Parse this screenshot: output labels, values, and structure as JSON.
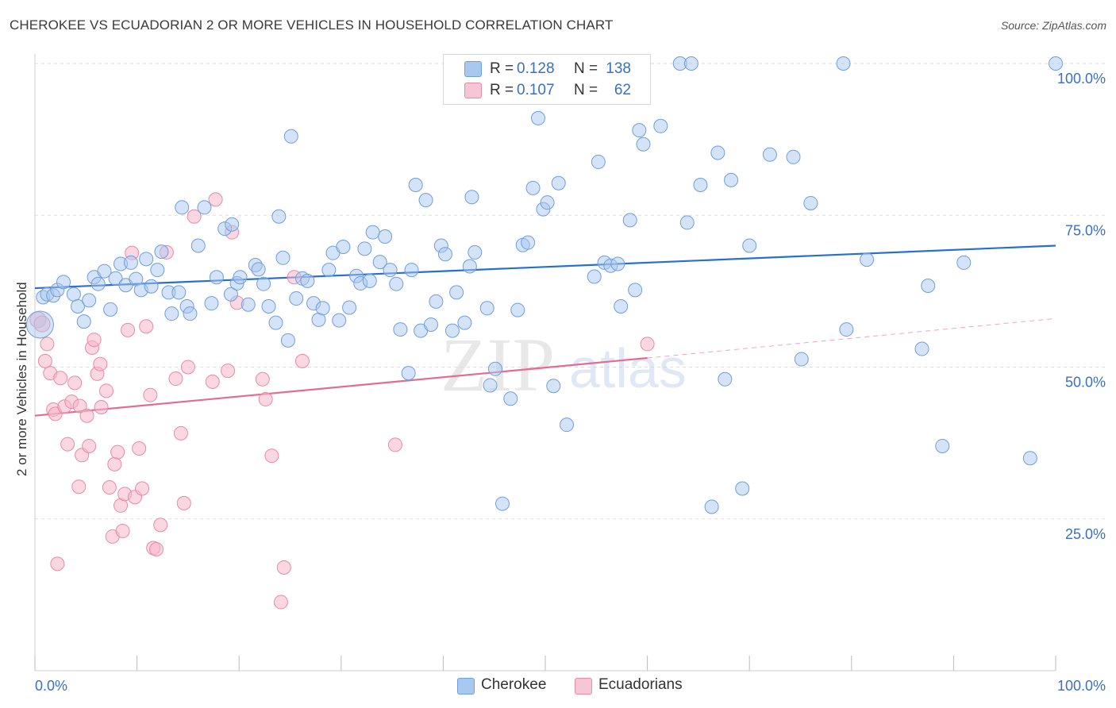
{
  "header": {
    "title": "CHEROKEE VS ECUADORIAN 2 OR MORE VEHICLES IN HOUSEHOLD CORRELATION CHART",
    "source": "Source: ZipAtlas.com"
  },
  "legend_top": {
    "rows": [
      {
        "r_label": "R =",
        "r_value": "0.128",
        "n_label": "N =",
        "n_value": "138"
      },
      {
        "r_label": "R =",
        "r_value": "0.107",
        "n_label": "N =",
        "n_value": "62"
      }
    ]
  },
  "legend_bottom": {
    "items": [
      "Cherokee",
      "Ecuadorians"
    ]
  },
  "colors": {
    "cherokee_fill": "#a9c8f0",
    "cherokee_stroke": "#6f9fdc",
    "cherokee_line": "#2a6fcf",
    "ecuador_fill": "#f7b7ca",
    "ecuador_stroke": "#e98aa7",
    "ecuador_line": "#e36c95",
    "tick_label": "#3a6fc4",
    "grid": "#dddddd"
  },
  "watermark": {
    "zip": "ZIP",
    "atlas": "atlas"
  },
  "chart_data": {
    "type": "scatter",
    "title": "CHEROKEE VS ECUADORIAN 2 OR MORE VEHICLES IN HOUSEHOLD CORRELATION CHART",
    "xlabel": "",
    "ylabel": "2 or more Vehicles in Household",
    "xlim": [
      0,
      100
    ],
    "ylim": [
      0,
      104
    ],
    "x_tick_labels": [
      "0.0%",
      "100.0%"
    ],
    "y_ticks": [
      25,
      50,
      75,
      100
    ],
    "y_tick_labels": [
      "25.0%",
      "50.0%",
      "75.0%",
      "100.0%"
    ],
    "grid": true,
    "legend_placement": "top-center",
    "series": [
      {
        "name": "Cherokee",
        "r": 0.128,
        "n": 138,
        "trend": {
          "x0": 0,
          "y0": 63.0,
          "x1": 100,
          "y1": 70.0
        },
        "points": [
          [
            0.5,
            57
          ],
          [
            0.8,
            61.5
          ],
          [
            1.2,
            62
          ],
          [
            1.8,
            61.8
          ],
          [
            2.2,
            62.7
          ],
          [
            2.8,
            64
          ],
          [
            3.8,
            62
          ],
          [
            4.2,
            60
          ],
          [
            4.8,
            57.5
          ],
          [
            5.3,
            61
          ],
          [
            5.8,
            64.8
          ],
          [
            6.2,
            63.7
          ],
          [
            6.8,
            65.8
          ],
          [
            7.4,
            59.5
          ],
          [
            7.9,
            64.6
          ],
          [
            8.4,
            67
          ],
          [
            8.9,
            63.5
          ],
          [
            9.4,
            67.2
          ],
          [
            9.9,
            64.5
          ],
          [
            10.4,
            62.7
          ],
          [
            10.9,
            67.8
          ],
          [
            11.4,
            63.3
          ],
          [
            12.0,
            66
          ],
          [
            12.4,
            69
          ],
          [
            13.1,
            62.3
          ],
          [
            13.4,
            58.8
          ],
          [
            14.1,
            62.3
          ],
          [
            14.9,
            60
          ],
          [
            15.2,
            58.8
          ],
          [
            14.4,
            76.3
          ],
          [
            16.0,
            70
          ],
          [
            16.6,
            76.3
          ],
          [
            17.3,
            60.5
          ],
          [
            17.8,
            64.8
          ],
          [
            18.6,
            72.8
          ],
          [
            19.2,
            62
          ],
          [
            19.8,
            63.8
          ],
          [
            20.1,
            64.8
          ],
          [
            19.3,
            73.5
          ],
          [
            20.9,
            60.3
          ],
          [
            21.6,
            66.8
          ],
          [
            21.9,
            66.1
          ],
          [
            22.4,
            63.7
          ],
          [
            22.9,
            60
          ],
          [
            23.6,
            57.3
          ],
          [
            23.9,
            74.8
          ],
          [
            24.3,
            68
          ],
          [
            24.8,
            54.4
          ],
          [
            25.1,
            88
          ],
          [
            25.6,
            61.3
          ],
          [
            26.2,
            64.6
          ],
          [
            26.7,
            64.2
          ],
          [
            27.3,
            60.5
          ],
          [
            27.8,
            57.8
          ],
          [
            28.2,
            59.7
          ],
          [
            28.8,
            66
          ],
          [
            29.2,
            68.8
          ],
          [
            29.8,
            57.7
          ],
          [
            30.2,
            69.8
          ],
          [
            30.8,
            59.8
          ],
          [
            31.5,
            65
          ],
          [
            31.9,
            63.8
          ],
          [
            32.3,
            69.5
          ],
          [
            32.8,
            64.2
          ],
          [
            33.1,
            72.2
          ],
          [
            33.8,
            67.3
          ],
          [
            34.3,
            71.5
          ],
          [
            34.8,
            66
          ],
          [
            35.4,
            63.7
          ],
          [
            35.8,
            56.2
          ],
          [
            36.6,
            49
          ],
          [
            36.9,
            66
          ],
          [
            37.3,
            80
          ],
          [
            37.8,
            56
          ],
          [
            38.3,
            77.5
          ],
          [
            38.8,
            57
          ],
          [
            39.3,
            60.8
          ],
          [
            39.8,
            70
          ],
          [
            40.2,
            68.6
          ],
          [
            40.9,
            56
          ],
          [
            41.3,
            62.3
          ],
          [
            42.1,
            57.3
          ],
          [
            42.6,
            66.6
          ],
          [
            42.8,
            78
          ],
          [
            43.1,
            68.9
          ],
          [
            44.3,
            59.7
          ],
          [
            44.6,
            47
          ],
          [
            45.1,
            49.7
          ],
          [
            45.8,
            27.5
          ],
          [
            46.6,
            44.8
          ],
          [
            47.3,
            59.4
          ],
          [
            47.8,
            70.1
          ],
          [
            48.3,
            70.5
          ],
          [
            48.8,
            79.5
          ],
          [
            49.3,
            91
          ],
          [
            49.8,
            76
          ],
          [
            50.2,
            77.1
          ],
          [
            50.8,
            46.9
          ],
          [
            51.3,
            80.3
          ],
          [
            52.1,
            40.5
          ],
          [
            54.8,
            64.9
          ],
          [
            55.2,
            83.8
          ],
          [
            55.8,
            67.2
          ],
          [
            56.4,
            66.7
          ],
          [
            57.1,
            67
          ],
          [
            57.4,
            60
          ],
          [
            58.3,
            74.2
          ],
          [
            58.8,
            62.7
          ],
          [
            59.2,
            89
          ],
          [
            59.6,
            86.7
          ],
          [
            61.3,
            89.7
          ],
          [
            63.2,
            100
          ],
          [
            64.3,
            100
          ],
          [
            63.9,
            73.8
          ],
          [
            65.2,
            80
          ],
          [
            66.3,
            27
          ],
          [
            66.9,
            85.3
          ],
          [
            67.6,
            48
          ],
          [
            68.2,
            80.8
          ],
          [
            69.3,
            30
          ],
          [
            70.0,
            70
          ],
          [
            72.0,
            85
          ],
          [
            74.3,
            84.6
          ],
          [
            75.1,
            51.3
          ],
          [
            76.0,
            77
          ],
          [
            79.2,
            100
          ],
          [
            79.5,
            56.2
          ],
          [
            81.5,
            67.7
          ],
          [
            86.9,
            53
          ],
          [
            87.5,
            63.4
          ],
          [
            88.9,
            37
          ],
          [
            91.0,
            67.2
          ],
          [
            97.5,
            35
          ],
          [
            100.0,
            100
          ]
        ]
      },
      {
        "name": "Ecuadorians",
        "r": 0.107,
        "n": 62,
        "trend": {
          "x0": 0,
          "y0": 42.0,
          "x1": 60,
          "y1": 51.5
        },
        "trend_dashed": {
          "x0": 60,
          "y0": 51.5,
          "x1": 100,
          "y1": 58.0
        },
        "points": [
          [
            0.3,
            57.8
          ],
          [
            0.7,
            57.1
          ],
          [
            1.0,
            51
          ],
          [
            1.2,
            53.8
          ],
          [
            1.5,
            49
          ],
          [
            1.8,
            43
          ],
          [
            2.0,
            42.3
          ],
          [
            2.2,
            17.6
          ],
          [
            2.5,
            48.2
          ],
          [
            2.9,
            43.5
          ],
          [
            3.2,
            37.3
          ],
          [
            3.6,
            44.3
          ],
          [
            3.9,
            47.4
          ],
          [
            4.3,
            30.3
          ],
          [
            4.4,
            43.6
          ],
          [
            4.6,
            35.5
          ],
          [
            5.1,
            42
          ],
          [
            5.3,
            37
          ],
          [
            5.6,
            53.2
          ],
          [
            5.8,
            54.5
          ],
          [
            6.1,
            48.9
          ],
          [
            6.4,
            50.5
          ],
          [
            6.5,
            43.4
          ],
          [
            7.0,
            46.1
          ],
          [
            7.3,
            30.2
          ],
          [
            7.6,
            22.1
          ],
          [
            7.8,
            34
          ],
          [
            8.1,
            36
          ],
          [
            8.4,
            27.2
          ],
          [
            8.6,
            23
          ],
          [
            8.8,
            29.1
          ],
          [
            9.1,
            56.1
          ],
          [
            9.5,
            68.8
          ],
          [
            9.8,
            28.6
          ],
          [
            10.2,
            36.6
          ],
          [
            10.5,
            30
          ],
          [
            10.9,
            56.7
          ],
          [
            11.3,
            45.4
          ],
          [
            11.6,
            20.2
          ],
          [
            11.9,
            20
          ],
          [
            12.3,
            24
          ],
          [
            12.9,
            68.9
          ],
          [
            13.8,
            48.1
          ],
          [
            14.3,
            39.1
          ],
          [
            14.6,
            27.6
          ],
          [
            15.0,
            50
          ],
          [
            15.6,
            74.8
          ],
          [
            17.4,
            47.6
          ],
          [
            17.7,
            77.6
          ],
          [
            18.9,
            49.4
          ],
          [
            19.3,
            72.2
          ],
          [
            19.8,
            60.6
          ],
          [
            22.3,
            48
          ],
          [
            22.6,
            44.7
          ],
          [
            23.2,
            35.4
          ],
          [
            24.1,
            11.3
          ],
          [
            24.4,
            17
          ],
          [
            25.4,
            64.8
          ],
          [
            26.2,
            51
          ],
          [
            35.3,
            37.2
          ],
          [
            60.0,
            53.8
          ]
        ]
      }
    ]
  }
}
